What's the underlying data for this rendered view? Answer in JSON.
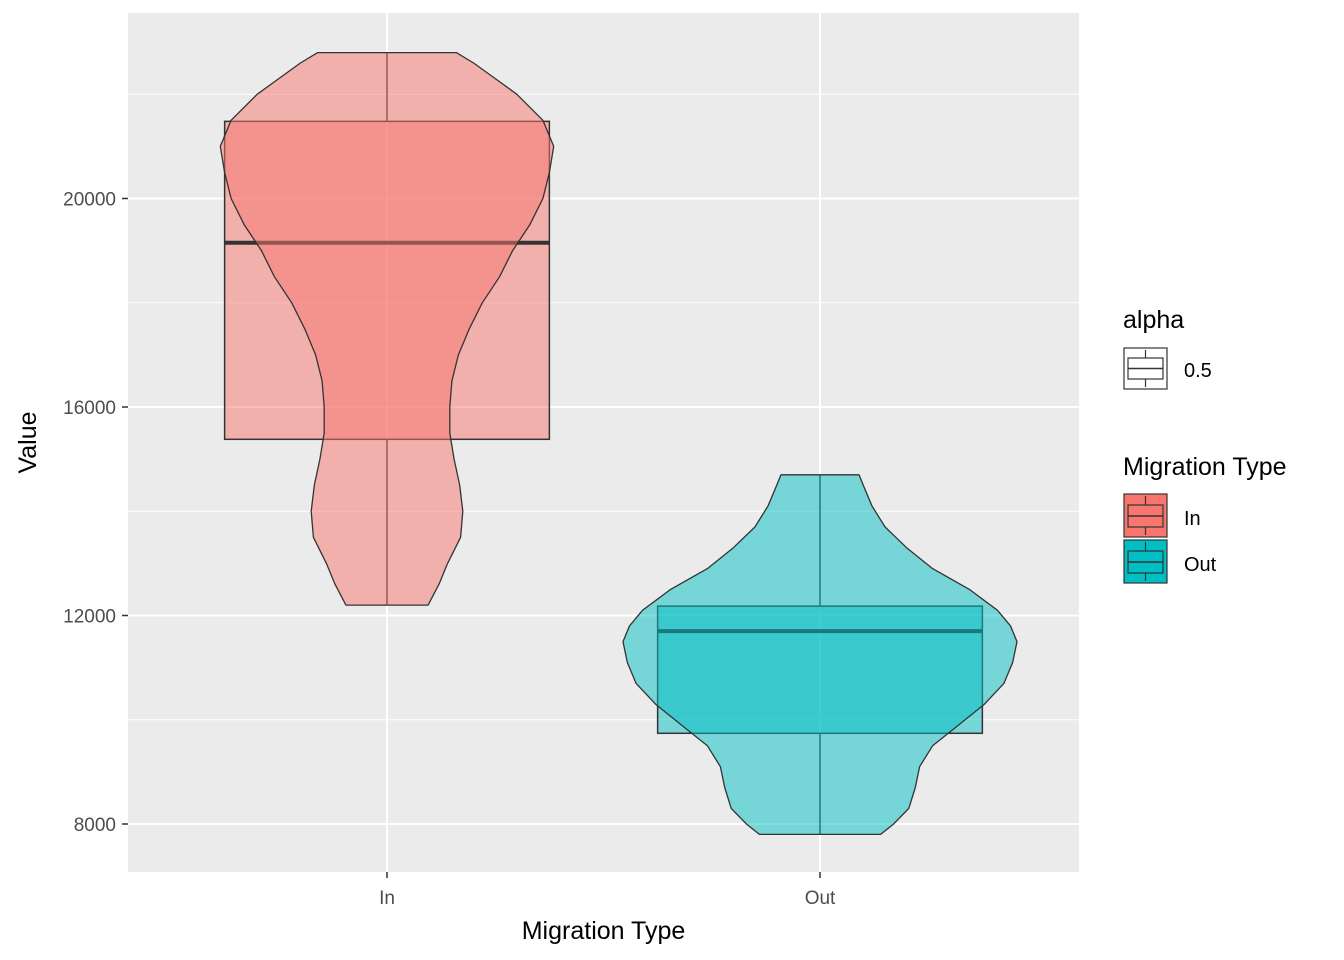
{
  "chart_data": {
    "type": "violin+boxplot",
    "xlabel": "Migration Type",
    "ylabel": "Value",
    "categories": [
      "In",
      "Out"
    ],
    "y_ticks": [
      8000,
      12000,
      16000,
      20000
    ],
    "y_tick_labels": [
      "8000",
      "12000",
      "16000",
      "20000"
    ],
    "ylim": [
      7100,
      23500
    ],
    "grid": true,
    "legend_placement": "right",
    "series": [
      {
        "name": "In",
        "color": "#F8766D",
        "box": {
          "min": 12200,
          "q1": 15380,
          "median": 19150,
          "q3": 21480,
          "max": 22800
        },
        "violin": {
          "y": [
            12200,
            12600,
            13000,
            13500,
            14000,
            14500,
            15000,
            15500,
            16000,
            16500,
            17000,
            17500,
            18000,
            18500,
            19000,
            19500,
            20000,
            20500,
            21000,
            21500,
            22000,
            22300,
            22600,
            22800
          ],
          "width": [
            0.095,
            0.12,
            0.14,
            0.17,
            0.175,
            0.168,
            0.155,
            0.145,
            0.145,
            0.15,
            0.165,
            0.19,
            0.22,
            0.26,
            0.29,
            0.33,
            0.36,
            0.375,
            0.385,
            0.36,
            0.3,
            0.25,
            0.2,
            0.16
          ]
        }
      },
      {
        "name": "Out",
        "color": "#00BFC4",
        "box": {
          "min": 7800,
          "q1": 9740,
          "median": 11700,
          "q3": 12180,
          "max": 14700
        },
        "violin": {
          "y": [
            7800,
            8000,
            8300,
            8700,
            9100,
            9500,
            9900,
            10300,
            10700,
            11100,
            11500,
            11800,
            12100,
            12500,
            12900,
            13300,
            13700,
            14100,
            14500,
            14700
          ],
          "width": [
            0.14,
            0.17,
            0.205,
            0.22,
            0.23,
            0.26,
            0.32,
            0.38,
            0.425,
            0.445,
            0.455,
            0.44,
            0.41,
            0.345,
            0.26,
            0.2,
            0.15,
            0.12,
            0.1,
            0.09
          ]
        }
      }
    ],
    "legend": {
      "alpha": {
        "title": "alpha",
        "labels": [
          "0.5"
        ]
      },
      "fill": {
        "title": "Migration Type",
        "labels": [
          "In",
          "Out"
        ]
      }
    }
  }
}
